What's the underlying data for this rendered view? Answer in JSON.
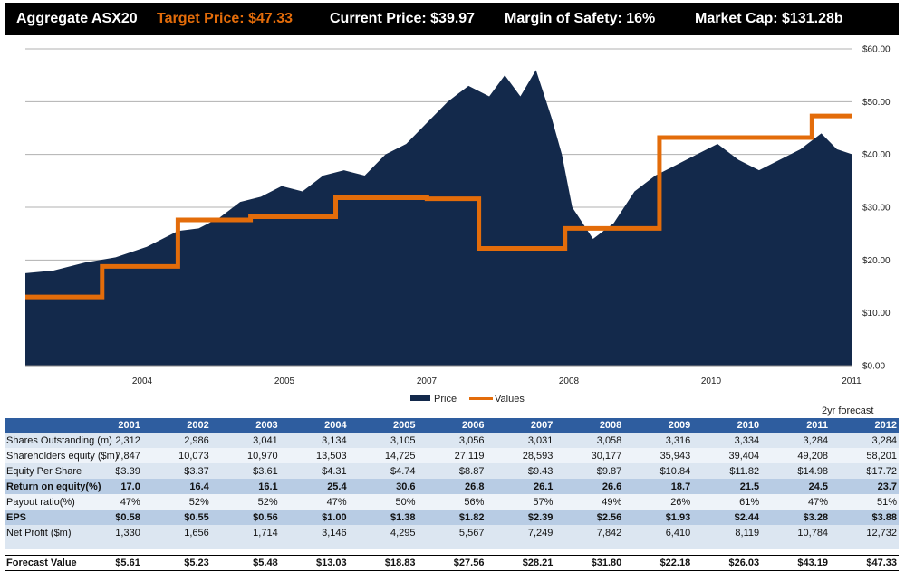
{
  "header": {
    "title": "Aggregate ASX20",
    "target_price": "Target Price: $47.33",
    "current_price": "Current Price: $39.97",
    "margin_of_safety": "Margin of Safety: 16%",
    "market_cap": "Market Cap: $131.28b"
  },
  "colors": {
    "price": "#13294b",
    "values": "#e36c0a",
    "header_bg": "#000000",
    "target": "#e36c0a",
    "table_header": "#2e5d9f"
  },
  "chart_data": {
    "type": "area",
    "xlim": [
      2003.03,
      2011.0
    ],
    "ylim": [
      0,
      60
    ],
    "x_ticks": [
      2004,
      2005,
      2007,
      2008,
      2010,
      2011
    ],
    "x_tick_labels": [
      "2004",
      "2005",
      "2007",
      "2008",
      "2010",
      "2011"
    ],
    "y_ticks": [
      0,
      10,
      20,
      30,
      40,
      50,
      60
    ],
    "y_tick_labels": [
      "$0.00",
      "$10.00",
      "$20.00",
      "$30.00",
      "$40.00",
      "$50.00",
      "$60.00"
    ],
    "grid": true,
    "legend": "bottom",
    "series": [
      {
        "name": "Price",
        "type": "area",
        "x": [
          2003.03,
          2003.3,
          2003.6,
          2003.9,
          2004.2,
          2004.5,
          2004.7,
          2004.9,
          2005.1,
          2005.3,
          2005.5,
          2005.7,
          2005.9,
          2006.1,
          2006.3,
          2006.5,
          2006.7,
          2006.9,
          2007.1,
          2007.3,
          2007.5,
          2007.65,
          2007.8,
          2007.95,
          2008.1,
          2008.2,
          2008.3,
          2008.5,
          2008.7,
          2008.9,
          2009.1,
          2009.3,
          2009.5,
          2009.7,
          2009.9,
          2010.1,
          2010.3,
          2010.5,
          2010.7,
          2010.85,
          2011.0
        ],
        "values": [
          17.5,
          18.0,
          19.5,
          20.5,
          22.5,
          25.5,
          26.0,
          28.0,
          31.0,
          32.0,
          34.0,
          33.0,
          36.0,
          37.0,
          36.0,
          40.0,
          42.0,
          46.0,
          50.0,
          53.0,
          51.0,
          55.0,
          51.0,
          56.0,
          47.0,
          40.0,
          30.0,
          24.0,
          27.0,
          33.0,
          36.0,
          38.0,
          40.0,
          42.0,
          39.0,
          37.0,
          39.0,
          41.0,
          44.0,
          41.0,
          40.0
        ]
      },
      {
        "name": "Values",
        "type": "line",
        "step_x": [
          2003.03,
          2003.77,
          2003.77,
          2004.5,
          2004.5,
          2005.2,
          2005.2,
          2006.02,
          2006.02,
          2006.9,
          2006.9,
          2007.4,
          2007.4,
          2008.23,
          2008.23,
          2009.14,
          2009.14,
          2009.9,
          2009.9,
          2010.61,
          2010.61,
          2011.0
        ],
        "step_y": [
          13.0,
          13.0,
          18.8,
          18.8,
          27.6,
          27.6,
          28.2,
          28.2,
          31.8,
          31.8,
          31.6,
          31.6,
          22.2,
          22.2,
          26.0,
          26.0,
          43.2,
          43.2,
          43.2,
          43.2,
          47.3,
          47.3
        ]
      }
    ]
  },
  "table": {
    "forecast_note": "2yr forecast",
    "years": [
      "2001",
      "2002",
      "2003",
      "2004",
      "2005",
      "2006",
      "2007",
      "2008",
      "2009",
      "2010",
      "2011",
      "2012"
    ],
    "rows": [
      {
        "label": "Shares Outstanding (m)",
        "style": "odd",
        "values": [
          "2,312",
          "2,986",
          "3,041",
          "3,134",
          "3,105",
          "3,056",
          "3,031",
          "3,058",
          "3,316",
          "3,334",
          "3,284",
          "3,284"
        ]
      },
      {
        "label": "Shareholders equity ($m)",
        "style": "even",
        "values": [
          "7,847",
          "10,073",
          "10,970",
          "13,503",
          "14,725",
          "27,119",
          "28,593",
          "30,177",
          "35,943",
          "39,404",
          "49,208",
          "58,201"
        ]
      },
      {
        "label": "Equity Per Share",
        "style": "odd",
        "values": [
          "$3.39",
          "$3.37",
          "$3.61",
          "$4.31",
          "$4.74",
          "$8.87",
          "$9.43",
          "$9.87",
          "$10.84",
          "$11.82",
          "$14.98",
          "$17.72"
        ]
      },
      {
        "label": "Return on equity(%)",
        "style": "hl",
        "values": [
          "17.0",
          "16.4",
          "16.1",
          "25.4",
          "30.6",
          "26.8",
          "26.1",
          "26.6",
          "18.7",
          "21.5",
          "24.5",
          "23.7"
        ]
      },
      {
        "label": "Payout ratio(%)",
        "style": "even",
        "values": [
          "47%",
          "52%",
          "52%",
          "47%",
          "50%",
          "56%",
          "57%",
          "49%",
          "26%",
          "61%",
          "47%",
          "51%"
        ]
      },
      {
        "label": "EPS",
        "style": "hl",
        "values": [
          "$0.58",
          "$0.55",
          "$0.56",
          "$1.00",
          "$1.38",
          "$1.82",
          "$2.39",
          "$2.56",
          "$1.93",
          "$2.44",
          "$3.28",
          "$3.88"
        ]
      },
      {
        "label": "Net Profit ($m)",
        "style": "odd",
        "values": [
          "1,330",
          "1,656",
          "1,714",
          "3,146",
          "4,295",
          "5,567",
          "7,249",
          "7,842",
          "6,410",
          "8,119",
          "10,784",
          "12,732"
        ]
      }
    ],
    "forecast_row": {
      "label": "Forecast Value",
      "values": [
        "$5.61",
        "$5.23",
        "$5.48",
        "$13.03",
        "$18.83",
        "$27.56",
        "$28.21",
        "$31.80",
        "$22.18",
        "$26.03",
        "$43.19",
        "$47.33"
      ]
    }
  }
}
